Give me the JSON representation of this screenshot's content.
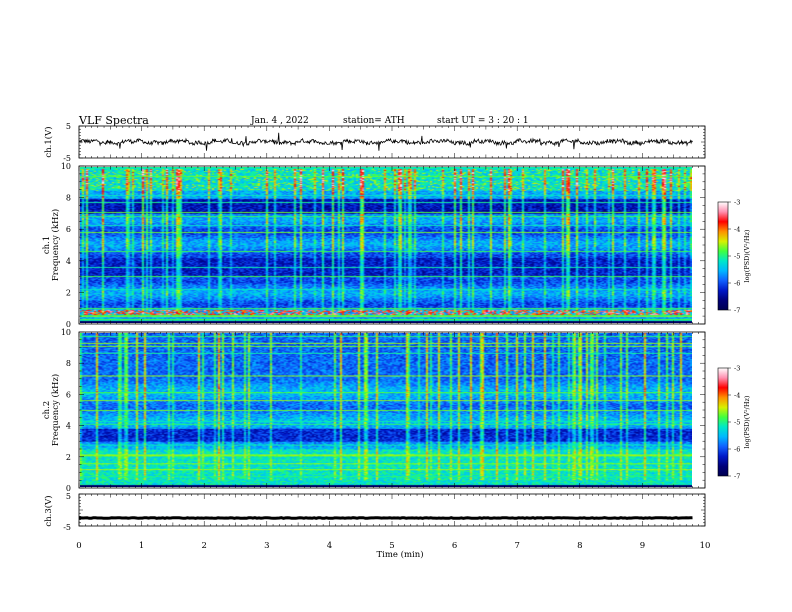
{
  "header": {
    "title": "VLF  Spectra",
    "date": "Jan. 4  , 2022",
    "station": "station= ATH",
    "start_ut": "start  UT  =   3  : 20 : 1"
  },
  "chart_data": [
    {
      "type": "line",
      "panel": "ch1-waveform",
      "ylabel": "ch.1(V)",
      "xlim": [
        0,
        10
      ],
      "ylim": [
        -5,
        5
      ],
      "yticks": [
        "5",
        "-5"
      ],
      "xrange_data": [
        0,
        9.8
      ],
      "series": [
        {
          "baseline": 0,
          "amplitude": 1.2,
          "noise": "spiky"
        }
      ]
    },
    {
      "type": "heatmap",
      "panel": "ch1-spectrogram",
      "ylabel": "ch.1\nFrequency  (kHz)",
      "ylabel_channel": "ch.1",
      "ylabel_freq": "Frequency  (kHz)",
      "xlim": [
        0,
        10
      ],
      "ylim": [
        0,
        10
      ],
      "yticks": [
        "0",
        "2",
        "4",
        "6",
        "8",
        "10"
      ],
      "colorbar": {
        "label": "log(PSD)(V²/Hz)",
        "ticks": [
          "-3",
          "-4",
          "-5",
          "-6",
          "-7"
        ],
        "range": [
          -7,
          -3
        ]
      }
    },
    {
      "type": "heatmap",
      "panel": "ch2-spectrogram",
      "ylabel": "ch.2\nFrequency  (kHz)",
      "ylabel_channel": "ch.2",
      "ylabel_freq": "Frequency  (kHz)",
      "xlim": [
        0,
        10
      ],
      "ylim": [
        0,
        10
      ],
      "yticks": [
        "0",
        "2",
        "4",
        "6",
        "8",
        "10"
      ],
      "colorbar": {
        "label": "log(PSD)(V²/Hz)",
        "ticks": [
          "-3",
          "-4",
          "-5",
          "-6",
          "-7"
        ],
        "range": [
          -7,
          -3
        ]
      }
    },
    {
      "type": "line",
      "panel": "ch3-waveform",
      "ylabel": "ch.3(V)",
      "xlim": [
        0,
        10
      ],
      "ylim": [
        -5,
        5
      ],
      "yticks": [
        "5",
        "-5"
      ],
      "xrange_data": [
        0,
        9.8
      ],
      "series": [
        {
          "baseline": -2.5,
          "amplitude": 0.2
        }
      ]
    }
  ],
  "xaxis": {
    "label": "Time  (min)",
    "ticks": [
      "0",
      "1",
      "2",
      "3",
      "4",
      "5",
      "6",
      "7",
      "8",
      "9",
      "10"
    ]
  },
  "colormap": [
    "#000050",
    "#00007a",
    "#0018c8",
    "#1060ff",
    "#00b8ff",
    "#00e8c8",
    "#40ff40",
    "#d8f000",
    "#ff9000",
    "#ff0000",
    "#ff90b0",
    "#ffffff"
  ]
}
